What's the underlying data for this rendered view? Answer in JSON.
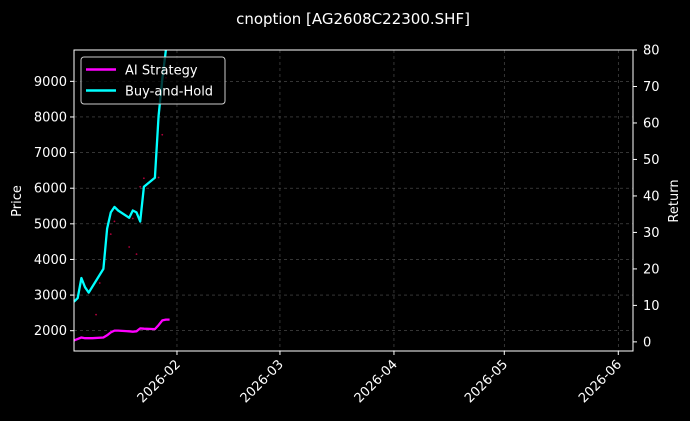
{
  "chart_data": {
    "type": "line",
    "title": "cnoption [AG2608C22300.SHF]",
    "ylabel_left": "Price",
    "ylabel_right": "Return",
    "ylim_left": [
      1430,
      9880
    ],
    "yticks_left": [
      "2000",
      "3000",
      "4000",
      "5000",
      "6000",
      "7000",
      "8000",
      "9000"
    ],
    "ylim_right": [
      -2.5,
      80
    ],
    "yticks_right": [
      "0",
      "10",
      "20",
      "30",
      "40",
      "50",
      "60",
      "70",
      "80"
    ],
    "xlim": [
      "2026-01-04",
      "2026-06-05"
    ],
    "xticks": [
      "2026-02",
      "2026-03",
      "2026-04",
      "2026-05",
      "2026-06"
    ],
    "grid": true,
    "legend_position": "top-left",
    "background": "#000000",
    "series": [
      {
        "name": "AI Strategy",
        "axis": "right",
        "color": "#ff00ff",
        "x": [
          "2026-01-04",
          "2026-01-06",
          "2026-01-07",
          "2026-01-09",
          "2026-01-12",
          "2026-01-13",
          "2026-01-14",
          "2026-01-15",
          "2026-01-16",
          "2026-01-19",
          "2026-01-20",
          "2026-01-21",
          "2026-01-22",
          "2026-01-23",
          "2026-01-26",
          "2026-01-27",
          "2026-01-28",
          "2026-01-29",
          "2026-01-30"
        ],
        "values": [
          0.4,
          1.2,
          1.0,
          1.0,
          1.2,
          1.8,
          2.6,
          3.1,
          3.1,
          2.9,
          2.8,
          2.9,
          3.7,
          3.6,
          3.5,
          4.6,
          5.9,
          6.1,
          6.1
        ]
      },
      {
        "name": "Buy-and-Hold",
        "axis": "right",
        "color": "#00ffff",
        "x": [
          "2026-01-04",
          "2026-01-05",
          "2026-01-06",
          "2026-01-07",
          "2026-01-08",
          "2026-01-12",
          "2026-01-13",
          "2026-01-14",
          "2026-01-15",
          "2026-01-16",
          "2026-01-19",
          "2026-01-20",
          "2026-01-21",
          "2026-01-22",
          "2026-01-23",
          "2026-01-26",
          "2026-01-27",
          "2026-01-28",
          "2026-01-29"
        ],
        "values": [
          11.0,
          12.0,
          17.5,
          15.0,
          13.5,
          20.0,
          31.0,
          35.5,
          37.0,
          36.0,
          34.0,
          36.0,
          35.5,
          33.0,
          42.5,
          45.0,
          62.0,
          72.0,
          80.0
        ]
      }
    ],
    "price_dots": {
      "axis": "left",
      "color": "#b0003a",
      "x": [
        "2026-01-10",
        "2026-01-11",
        "2026-01-13",
        "2026-01-14",
        "2026-01-15",
        "2026-01-19",
        "2026-01-20",
        "2026-01-21",
        "2026-01-22",
        "2026-01-23",
        "2026-01-27",
        "2026-01-28",
        "2026-01-29"
      ],
      "values": [
        2450,
        3340,
        4780,
        4710,
        5070,
        4350,
        5150,
        4150,
        6040,
        6280,
        6300,
        7500,
        9100
      ]
    }
  }
}
